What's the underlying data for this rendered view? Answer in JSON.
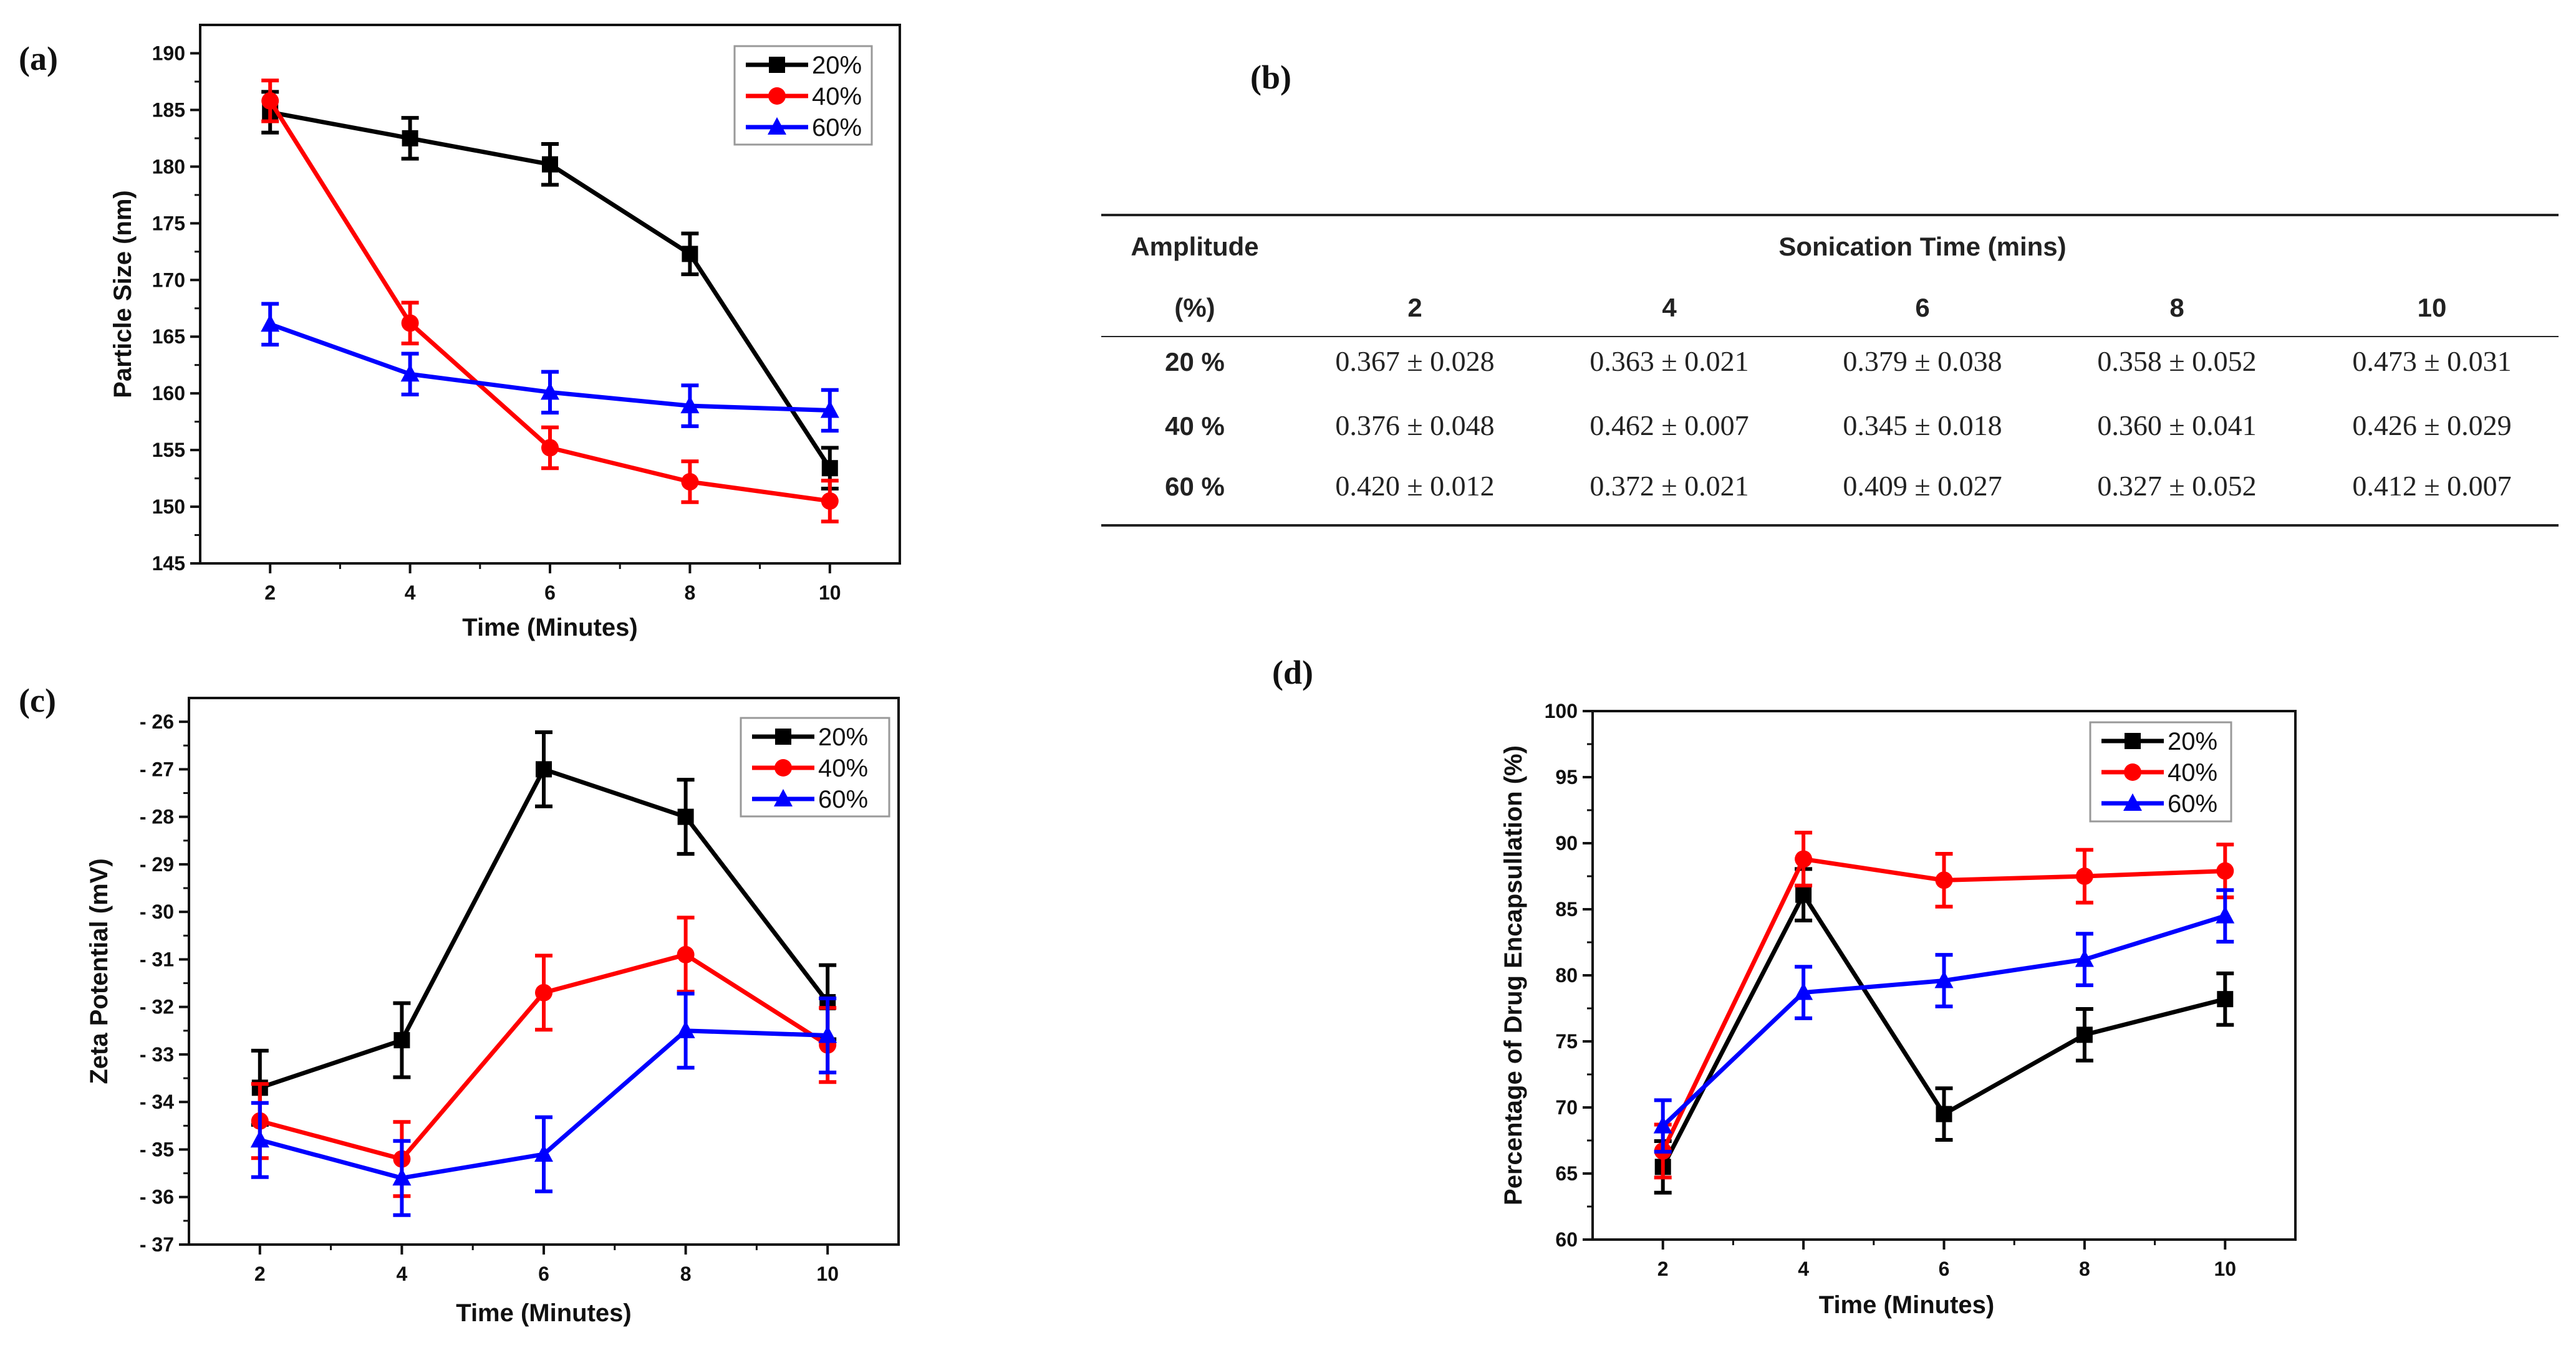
{
  "panel_labels": {
    "a": "(a)",
    "b": "(b)",
    "c": "(c)",
    "d": "(d)"
  },
  "colors": {
    "20%": "#000000",
    "40%": "#ff0000",
    "60%": "#0000ff"
  },
  "chart_data": [
    {
      "id": "a",
      "type": "line",
      "xlabel": "Time (Minutes)",
      "ylabel": "Particle Size (nm)",
      "xlim": [
        1,
        11
      ],
      "ylim": [
        145,
        192.5
      ],
      "xticks": [
        2,
        4,
        6,
        8,
        10
      ],
      "xtick_labels": [
        "2",
        "4",
        "6",
        "8",
        "10"
      ],
      "yticks": [
        145,
        150,
        155,
        160,
        165,
        170,
        175,
        180,
        185,
        190
      ],
      "ytick_labels": [
        "145",
        "150",
        "155",
        "160",
        "165",
        "170",
        "175",
        "180",
        "185",
        "190"
      ],
      "legend_position": "top-right",
      "x": [
        2,
        4,
        6,
        8,
        10
      ],
      "series": [
        {
          "name": "20%",
          "marker": "square",
          "values": [
            184.8,
            182.5,
            180.2,
            172.3,
            153.4
          ],
          "errors": [
            1.8,
            1.8,
            1.8,
            1.8,
            1.8
          ]
        },
        {
          "name": "40%",
          "marker": "circle",
          "values": [
            185.8,
            166.2,
            155.2,
            152.2,
            150.5
          ],
          "errors": [
            1.8,
            1.8,
            1.8,
            1.8,
            1.8
          ]
        },
        {
          "name": "60%",
          "marker": "triangle",
          "values": [
            166.1,
            161.7,
            160.1,
            158.9,
            158.5
          ],
          "errors": [
            1.8,
            1.8,
            1.8,
            1.8,
            1.8
          ]
        }
      ]
    },
    {
      "id": "c",
      "type": "line",
      "xlabel": "Time (Minutes)",
      "ylabel": "Zeta Potential (mV)",
      "xlim": [
        1,
        11
      ],
      "ylim": [
        -37,
        -25.5
      ],
      "xticks": [
        2,
        4,
        6,
        8,
        10
      ],
      "xtick_labels": [
        "2",
        "4",
        "6",
        "8",
        "10"
      ],
      "yticks": [
        -37,
        -36,
        -35,
        -34,
        -33,
        -32,
        -31,
        -30,
        -29,
        -28,
        -27,
        -26
      ],
      "ytick_labels": [
        "- 37",
        "- 36",
        "- 35",
        "- 34",
        "- 33",
        "- 32",
        "- 31",
        "- 30",
        "- 29",
        "- 28",
        "- 27",
        "- 26"
      ],
      "legend_position": "top-right",
      "x": [
        2,
        4,
        6,
        8,
        10
      ],
      "series": [
        {
          "name": "20%",
          "marker": "square",
          "values": [
            -33.7,
            -32.7,
            -27.0,
            -28.0,
            -31.9
          ],
          "errors": [
            0.78,
            0.78,
            0.78,
            0.78,
            0.78
          ]
        },
        {
          "name": "40%",
          "marker": "circle",
          "values": [
            -34.4,
            -35.2,
            -31.7,
            -30.9,
            -32.8
          ],
          "errors": [
            0.78,
            0.78,
            0.78,
            0.78,
            0.78
          ]
        },
        {
          "name": "60%",
          "marker": "triangle",
          "values": [
            -34.8,
            -35.6,
            -35.1,
            -32.5,
            -32.6
          ],
          "errors": [
            0.78,
            0.78,
            0.78,
            0.78,
            0.78
          ]
        }
      ]
    },
    {
      "id": "d",
      "type": "line",
      "xlabel": "Time (Minutes)",
      "ylabel": "Percentage of Drug Encapsullation (%)",
      "xlim": [
        1,
        11
      ],
      "ylim": [
        60,
        100
      ],
      "xticks": [
        2,
        4,
        6,
        8,
        10
      ],
      "xtick_labels": [
        "2",
        "4",
        "6",
        "8",
        "10"
      ],
      "yticks": [
        60,
        65,
        70,
        75,
        80,
        85,
        90,
        95,
        100
      ],
      "ytick_labels": [
        "60",
        "65",
        "70",
        "75",
        "80",
        "85",
        "90",
        "95",
        "100"
      ],
      "legend_position": "top-right",
      "x": [
        2,
        4,
        6,
        8,
        10
      ],
      "series": [
        {
          "name": "20%",
          "marker": "square",
          "values": [
            65.5,
            86.1,
            69.5,
            75.5,
            78.2
          ],
          "errors": [
            1.95,
            1.95,
            1.95,
            1.95,
            1.95
          ]
        },
        {
          "name": "40%",
          "marker": "circle",
          "values": [
            66.7,
            88.8,
            87.2,
            87.5,
            87.9
          ],
          "errors": [
            2.0,
            2.0,
            2.0,
            2.0,
            2.0
          ]
        },
        {
          "name": "60%",
          "marker": "triangle",
          "values": [
            68.6,
            78.7,
            79.6,
            81.2,
            84.5
          ],
          "errors": [
            1.95,
            1.95,
            1.95,
            1.95,
            1.95
          ]
        }
      ]
    }
  ],
  "table": {
    "header_amplitude": "Amplitude",
    "header_amplitude_unit": "(%)",
    "header_time": "Sonication Time (mins)",
    "columns": [
      "2",
      "4",
      "6",
      "8",
      "10"
    ],
    "rows": [
      {
        "label": "20 %",
        "cells": [
          "0.367 ± 0.028",
          "0.363 ± 0.021",
          "0.379 ± 0.038",
          "0.358 ± 0.052",
          "0.473 ± 0.031"
        ]
      },
      {
        "label": "40 %",
        "cells": [
          "0.376 ± 0.048",
          "0.462 ± 0.007",
          "0.345 ± 0.018",
          "0.360 ± 0.041",
          "0.426 ± 0.029"
        ]
      },
      {
        "label": "60 %",
        "cells": [
          "0.420 ± 0.012",
          "0.372 ± 0.021",
          "0.409 ± 0.027",
          "0.327 ± 0.052",
          "0.412 ± 0.007"
        ]
      }
    ]
  }
}
